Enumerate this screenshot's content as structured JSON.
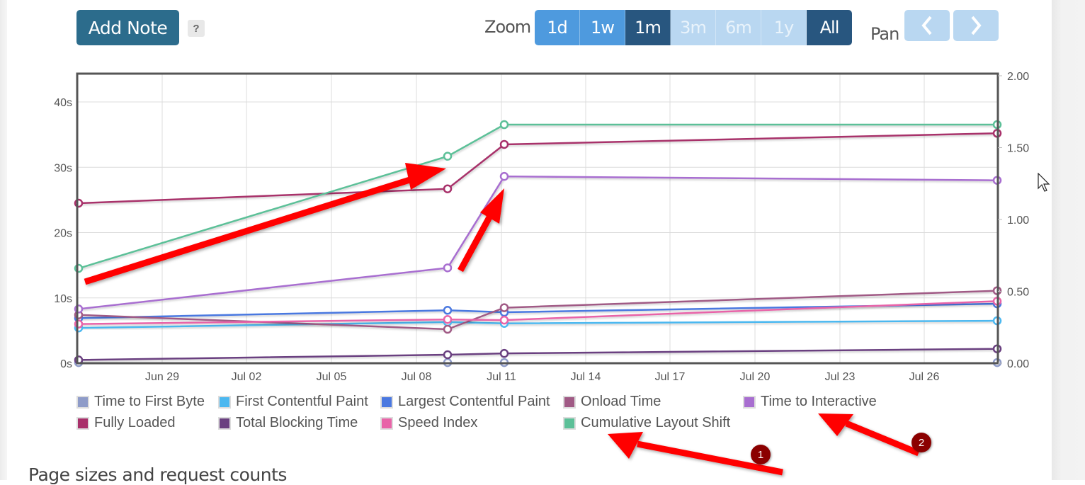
{
  "toolbar": {
    "add_note_label": "Add Note",
    "help_label": "?",
    "zoom_label": "Zoom",
    "zoom_options": [
      {
        "label": "1d",
        "state": "normal"
      },
      {
        "label": "1w",
        "state": "normal"
      },
      {
        "label": "1m",
        "state": "active"
      },
      {
        "label": "3m",
        "state": "disabled"
      },
      {
        "label": "6m",
        "state": "disabled"
      },
      {
        "label": "1y",
        "state": "disabled"
      },
      {
        "label": "All",
        "state": "active"
      }
    ],
    "pan_label": "Pan",
    "pan_prev_icon": "chevron-left-icon",
    "pan_next_icon": "chevron-right-icon"
  },
  "colors": {
    "add_note_bg": "#2c6c8c",
    "zoom_normal": "#4e9ade",
    "zoom_active": "#28567f",
    "zoom_disabled": "#b9d7f1",
    "annotation_arrow": "#ff0000",
    "annotation_badge": "#8b0000"
  },
  "chart_data": {
    "type": "line",
    "title": "",
    "x": [
      "Jun 26",
      "Jul 09",
      "Jul 11",
      "Jul 29"
    ],
    "x_tick_labels": [
      "Jun 29",
      "Jul 02",
      "Jul 05",
      "Jul 08",
      "Jul 11",
      "Jul 14",
      "Jul 17",
      "Jul 20",
      "Jul 23",
      "Jul 26"
    ],
    "y_left": {
      "label": "",
      "ticks": [
        "0s",
        "10s",
        "20s",
        "30s",
        "40s"
      ],
      "range": [
        0,
        44
      ]
    },
    "y_right": {
      "label": "",
      "ticks": [
        "0.00",
        "0.50",
        "1.00",
        "1.50",
        "2.00"
      ],
      "range": [
        0,
        2
      ]
    },
    "grid": true,
    "legend_position": "bottom",
    "series": [
      {
        "name": "Time to First Byte",
        "color": "#8e9bc8",
        "axis": "left",
        "values": [
          0.1,
          0.1,
          0.1,
          0.1
        ]
      },
      {
        "name": "First Contentful Paint",
        "color": "#4cb8f0",
        "axis": "left",
        "values": [
          5.4,
          6.3,
          6.1,
          6.5
        ]
      },
      {
        "name": "Largest Contentful Paint",
        "color": "#4a78e0",
        "axis": "left",
        "values": [
          6.9,
          8.1,
          7.8,
          9.1
        ]
      },
      {
        "name": "Onload Time",
        "color": "#a05a85",
        "axis": "left",
        "values": [
          7.4,
          5.2,
          8.5,
          11.1
        ]
      },
      {
        "name": "Time to Interactive",
        "color": "#a86ed0",
        "axis": "left",
        "values": [
          8.3,
          14.6,
          28.6,
          28.0
        ]
      },
      {
        "name": "Fully Loaded",
        "color": "#a8306a",
        "axis": "left",
        "values": [
          24.5,
          26.7,
          33.5,
          35.2
        ]
      },
      {
        "name": "Total Blocking Time",
        "color": "#6a4080",
        "axis": "left",
        "values": [
          0.5,
          1.3,
          1.5,
          2.2
        ]
      },
      {
        "name": "Speed Index",
        "color": "#e864a8",
        "axis": "left",
        "values": [
          6.0,
          6.7,
          6.6,
          9.5
        ]
      },
      {
        "name": "Cumulative Layout Shift",
        "color": "#5cc098",
        "axis": "right",
        "values": [
          0.66,
          1.44,
          1.66,
          1.66
        ]
      }
    ],
    "annotations": [
      {
        "type": "arrow",
        "target": "Cumulative Layout Shift rise"
      },
      {
        "type": "arrow",
        "target": "Time to Interactive jump"
      },
      {
        "type": "numbered-arrow",
        "number": "1",
        "target": "Cumulative Layout Shift legend"
      },
      {
        "type": "numbered-arrow",
        "number": "2",
        "target": "Time to Interactive legend"
      }
    ]
  },
  "legend": [
    {
      "label": "Time to First Byte",
      "color": "#8e9bc8"
    },
    {
      "label": "First Contentful Paint",
      "color": "#4cb8f0"
    },
    {
      "label": "Largest Contentful Paint",
      "color": "#4a78e0"
    },
    {
      "label": "Onload Time",
      "color": "#a05a85"
    },
    {
      "label": "Time to Interactive",
      "color": "#a86ed0"
    },
    {
      "label": "Fully Loaded",
      "color": "#a8306a"
    },
    {
      "label": "Total Blocking Time",
      "color": "#6a4080"
    },
    {
      "label": "Speed Index",
      "color": "#e864a8"
    },
    {
      "label": "Cumulative Layout Shift",
      "color": "#5cc098"
    }
  ],
  "annotation_badges": [
    "1",
    "2"
  ],
  "next_section_heading": "Page sizes and request counts"
}
